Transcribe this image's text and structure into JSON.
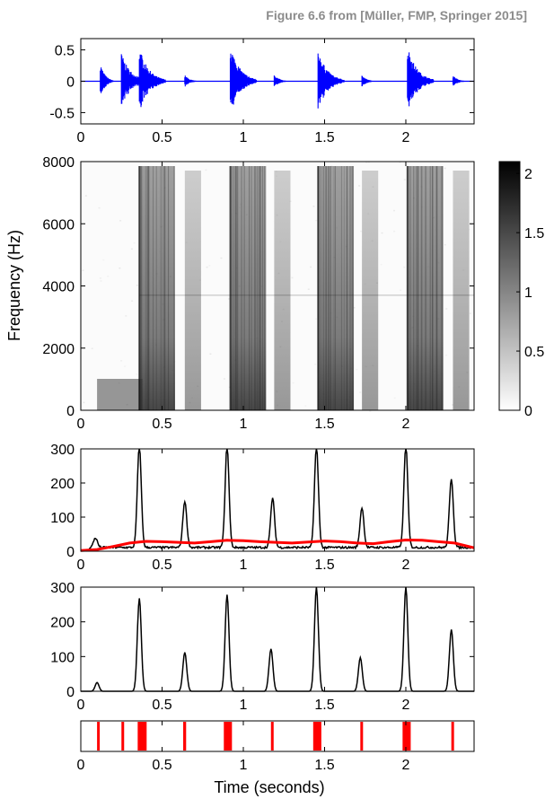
{
  "figure_credit": "Figure 6.6 from [Müller, FMP, Springer 2015]",
  "colors": {
    "waveform": "#0000ff",
    "novelty": "#000000",
    "local_average": "#ff0000",
    "peaks": "#ff0000",
    "axes": "#000000"
  },
  "chart_data": [
    {
      "id": "waveform",
      "type": "line",
      "series": [
        {
          "description": "audio waveform"
        }
      ],
      "x_ticks": [
        "0",
        "0.5",
        "1",
        "1.5",
        "2"
      ],
      "y_ticks": [
        "-0.5",
        "0",
        "0.5"
      ],
      "xlim": [
        0,
        2.42
      ],
      "ylim": [
        -0.68,
        0.68
      ],
      "onsets": [
        0.12,
        0.25,
        0.36,
        0.64,
        0.92,
        1.19,
        1.46,
        1.73,
        2.01,
        2.29
      ],
      "onset_peak_amplitude": [
        0.3,
        0.45,
        0.55,
        0.1,
        0.6,
        0.12,
        0.5,
        0.1,
        0.58,
        0.1
      ]
    },
    {
      "id": "spectrogram",
      "type": "heatmap",
      "ylabel": "Frequency (Hz)",
      "x_ticks": [
        "0",
        "0.5",
        "1",
        "1.5",
        "2"
      ],
      "y_ticks": [
        "0",
        "2000",
        "4000",
        "6000",
        "8000"
      ],
      "xlim": [
        0,
        2.42
      ],
      "ylim": [
        0,
        8000
      ],
      "colorbar_ticks": [
        "0",
        "0.5",
        "1",
        "1.5",
        "2"
      ],
      "colorbar_range": [
        0,
        2.1
      ],
      "colormap": "gray reversed (white = 0, black = max)",
      "strong_onsets": [
        0.36,
        0.92,
        1.46,
        2.01
      ],
      "weak_onsets": [
        0.64,
        1.19,
        1.73,
        2.29
      ]
    },
    {
      "id": "novelty",
      "type": "line",
      "x_ticks": [
        "0",
        "0.5",
        "1",
        "1.5",
        "2"
      ],
      "y_ticks": [
        "0",
        "100",
        "200",
        "300"
      ],
      "xlim": [
        0,
        2.42
      ],
      "ylim": [
        0,
        300
      ],
      "series": [
        {
          "description": "novelty function",
          "peaks": [
            [
              0.09,
              28
            ],
            [
              0.36,
              300
            ],
            [
              0.64,
              136
            ],
            [
              0.9,
              300
            ],
            [
              1.18,
              145
            ],
            [
              1.45,
              300
            ],
            [
              1.73,
              117
            ],
            [
              2.0,
              300
            ],
            [
              2.28,
              202
            ]
          ]
        },
        {
          "description": "local average",
          "x": [
            0,
            0.1,
            0.2,
            0.3,
            0.4,
            0.5,
            0.6,
            0.7,
            0.8,
            0.9,
            1.0,
            1.1,
            1.2,
            1.3,
            1.4,
            1.5,
            1.6,
            1.7,
            1.8,
            1.9,
            2.0,
            2.1,
            2.2,
            2.3,
            2.42
          ],
          "y": [
            2,
            5,
            14,
            24,
            29,
            28,
            26,
            24,
            28,
            32,
            31,
            28,
            26,
            24,
            27,
            30,
            28,
            24,
            22,
            28,
            33,
            32,
            28,
            24,
            10
          ]
        }
      ]
    },
    {
      "id": "enhanced_novelty",
      "type": "line",
      "xlabel": "",
      "x_ticks": [
        "0",
        "0.5",
        "1",
        "1.5",
        "2"
      ],
      "y_ticks": [
        "0",
        "100",
        "200",
        "300"
      ],
      "xlim": [
        0,
        2.42
      ],
      "ylim": [
        0,
        300
      ],
      "series": [
        {
          "description": "enhanced novelty function",
          "peaks": [
            [
              0.1,
              25
            ],
            [
              0.36,
              268
            ],
            [
              0.64,
              112
            ],
            [
              0.9,
              278
            ],
            [
              1.17,
              122
            ],
            [
              1.45,
              300
            ],
            [
              1.72,
              97
            ],
            [
              2.0,
              300
            ],
            [
              2.28,
              178
            ]
          ]
        }
      ]
    },
    {
      "id": "peak_positions",
      "type": "bar",
      "xlabel": "Time (seconds)",
      "x_ticks": [
        "0",
        "0.5",
        "1",
        "1.5",
        "2"
      ],
      "xlim": [
        0,
        2.42
      ],
      "peaks": [
        [
          0.1,
          0.113
        ],
        [
          0.25,
          0.262
        ],
        [
          0.35,
          0.405
        ],
        [
          0.63,
          0.648
        ],
        [
          0.88,
          0.93
        ],
        [
          1.17,
          1.185
        ],
        [
          1.43,
          1.48
        ],
        [
          1.72,
          1.735
        ],
        [
          1.98,
          2.03
        ],
        [
          2.28,
          2.295
        ]
      ]
    }
  ]
}
